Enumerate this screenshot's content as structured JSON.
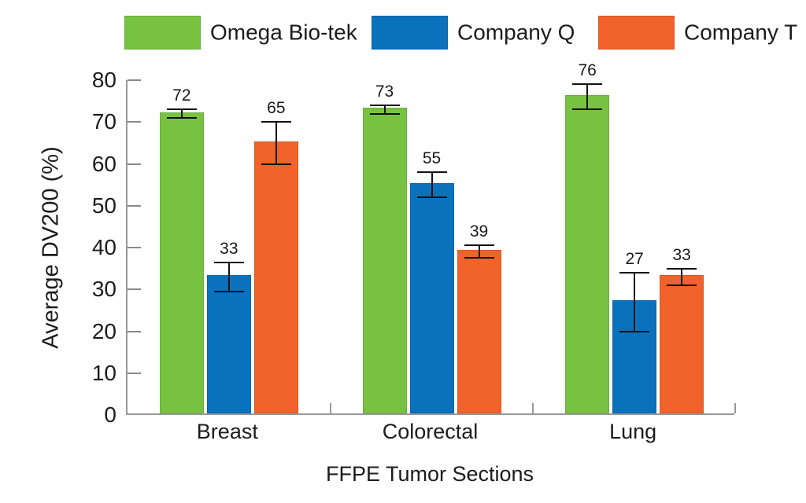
{
  "chart_data": {
    "type": "bar",
    "categories": [
      "Breast",
      "Colorectal",
      "Lung"
    ],
    "series": [
      {
        "name": "Omega Bio-tek",
        "color": "#78C241",
        "values": [
          72,
          73,
          76
        ],
        "errors": [
          1,
          1,
          3
        ]
      },
      {
        "name": "Company Q",
        "color": "#0A72BC",
        "values": [
          33,
          55,
          27
        ],
        "errors": [
          3.5,
          3,
          7
        ]
      },
      {
        "name": "Company T",
        "color": "#F1632A",
        "values": [
          65,
          39,
          33
        ],
        "errors": [
          5,
          1.5,
          2
        ]
      }
    ],
    "bar_value_labels": [
      [
        72,
        73,
        76
      ],
      [
        33,
        55,
        27
      ],
      [
        65,
        39,
        33
      ]
    ],
    "title": "",
    "xlabel": "FFPE Tumor Sections",
    "ylabel": "Average DV200 (%)",
    "ylim": [
      0,
      80
    ],
    "yticks": [
      0,
      10,
      20,
      30,
      40,
      50,
      60,
      70,
      80
    ],
    "grid": false,
    "legend_position": "top",
    "error_bar_color": "#111111",
    "axis_color": "#999999",
    "background_color": "#ffffff"
  }
}
